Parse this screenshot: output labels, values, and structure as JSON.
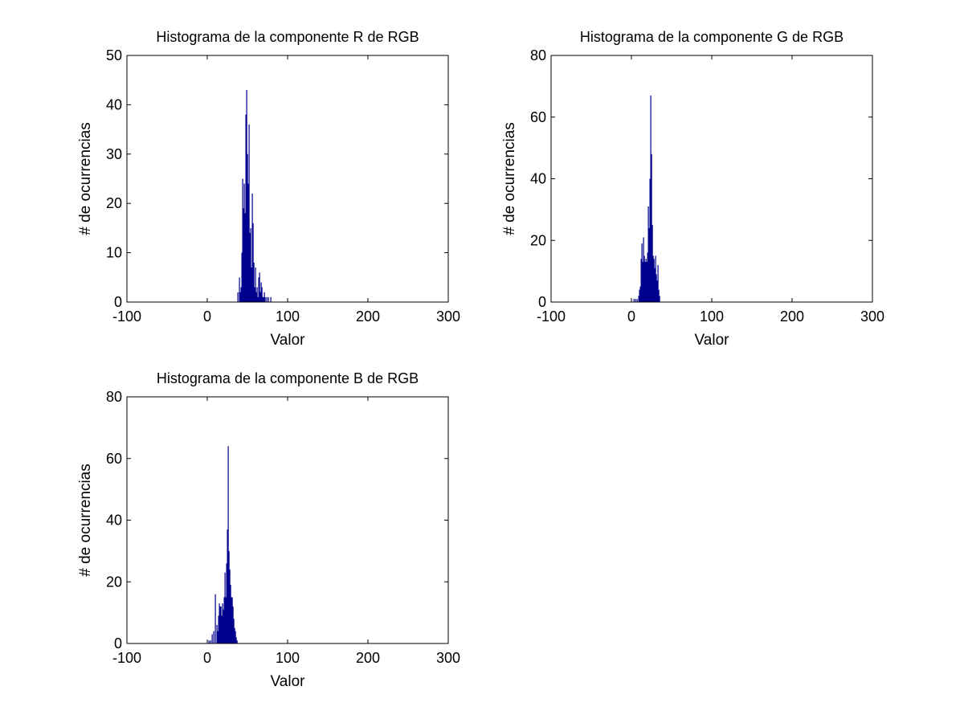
{
  "figure": {
    "background": "#ffffff",
    "bar_color": "#00008f",
    "axis_color": "#000000"
  },
  "chart_data": [
    {
      "type": "bar",
      "title": "Histograma de la componente R de RGB",
      "xlabel": "Valor",
      "ylabel": "# de ocurrencias",
      "xlim": [
        -100,
        300
      ],
      "ylim": [
        0,
        50
      ],
      "xticks": [
        -100,
        0,
        100,
        200,
        300
      ],
      "yticks": [
        0,
        10,
        20,
        30,
        40,
        50
      ],
      "x_tick_labels": [
        "-100",
        "0",
        "100",
        "200",
        "300"
      ],
      "y_tick_labels": [
        "0",
        "10",
        "20",
        "30",
        "40",
        "50"
      ],
      "x": [
        38,
        40,
        41,
        42,
        43,
        44,
        45,
        46,
        47,
        48,
        49,
        50,
        51,
        52,
        53,
        54,
        55,
        56,
        57,
        58,
        59,
        60,
        61,
        62,
        63,
        64,
        65,
        66,
        67,
        68,
        69,
        70,
        71,
        72,
        74,
        76,
        79
      ],
      "values": [
        2,
        5,
        2,
        3,
        10,
        25,
        19,
        24,
        18,
        38,
        43,
        30,
        24,
        36,
        14,
        15,
        7,
        22,
        16,
        8,
        3,
        7,
        2,
        3,
        1,
        5,
        6,
        2,
        4,
        3,
        1,
        1,
        2,
        1,
        1,
        1,
        1
      ],
      "grid": false,
      "legend": "none"
    },
    {
      "type": "bar",
      "title": "Histograma de la componente G de RGB",
      "xlabel": "Valor",
      "ylabel": "# de ocurrencias",
      "xlim": [
        -100,
        300
      ],
      "ylim": [
        0,
        80
      ],
      "xticks": [
        -100,
        0,
        100,
        200,
        300
      ],
      "yticks": [
        0,
        20,
        40,
        60,
        80
      ],
      "x_tick_labels": [
        "-100",
        "0",
        "100",
        "200",
        "300"
      ],
      "y_tick_labels": [
        "0",
        "20",
        "40",
        "60",
        "80"
      ],
      "x": [
        3,
        5,
        7,
        9,
        10,
        11,
        12,
        13,
        14,
        15,
        16,
        17,
        18,
        19,
        20,
        21,
        22,
        23,
        24,
        25,
        26,
        27,
        28,
        29,
        30,
        31,
        32,
        33,
        34,
        35
      ],
      "values": [
        1,
        1,
        1,
        2,
        4,
        5,
        14,
        19,
        13,
        21,
        15,
        13,
        14,
        13,
        16,
        31,
        24,
        40,
        67,
        48,
        25,
        15,
        14,
        11,
        15,
        9,
        7,
        12,
        4,
        2
      ],
      "grid": false,
      "legend": "none"
    },
    {
      "type": "bar",
      "title": "Histograma de la componente B de RGB",
      "xlabel": "Valor",
      "ylabel": "# de ocurrencias",
      "xlim": [
        -100,
        300
      ],
      "ylim": [
        0,
        80
      ],
      "xticks": [
        -100,
        0,
        100,
        200,
        300
      ],
      "yticks": [
        0,
        20,
        40,
        60,
        80
      ],
      "x_tick_labels": [
        "-100",
        "0",
        "100",
        "200",
        "300"
      ],
      "y_tick_labels": [
        "0",
        "20",
        "40",
        "60",
        "80"
      ],
      "x": [
        2,
        4,
        6,
        8,
        10,
        12,
        13,
        14,
        15,
        16,
        17,
        18,
        19,
        20,
        21,
        22,
        23,
        24,
        25,
        26,
        27,
        28,
        29,
        30,
        31,
        32,
        33,
        34,
        35,
        36,
        37
      ],
      "values": [
        1,
        1,
        3,
        4,
        16,
        6,
        4,
        9,
        13,
        12,
        12,
        9,
        13,
        11,
        15,
        23,
        15,
        26,
        37,
        64,
        30,
        24,
        19,
        15,
        15,
        12,
        8,
        5,
        4,
        2,
        1
      ],
      "grid": false,
      "legend": "none"
    }
  ]
}
